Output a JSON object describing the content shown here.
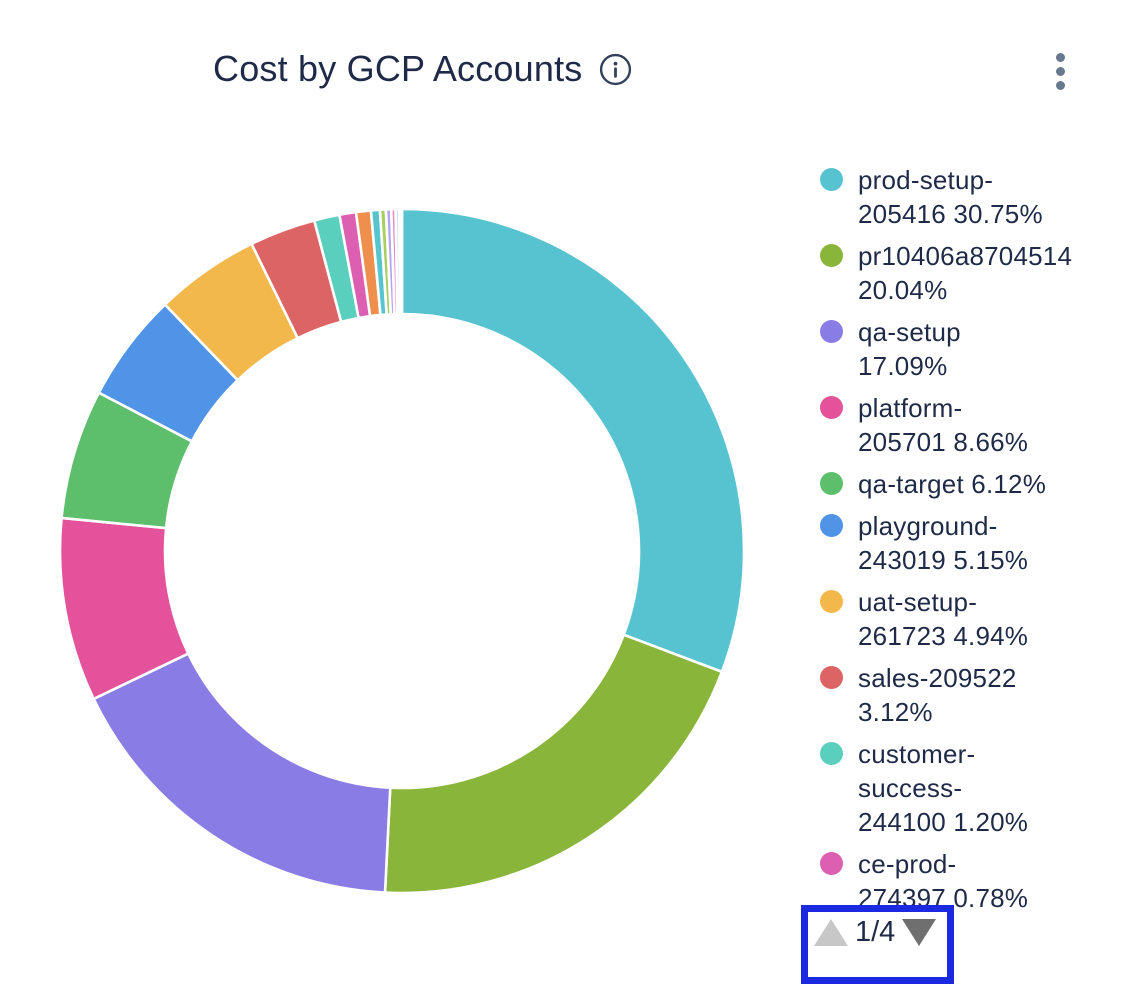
{
  "header": {
    "title": "Cost by GCP Accounts"
  },
  "colors": {
    "text": "#1e2a47",
    "kebab_dots": "#68788f",
    "pagination_border": "#1b2ae0",
    "pager_up_arrow_disabled": "#c7c7c7",
    "pager_down_arrow": "#6f6f6f"
  },
  "chart_data": {
    "type": "pie",
    "subtype": "donut",
    "title": "Cost by GCP Accounts",
    "legend_position": "right",
    "start_angle_deg": 0,
    "direction": "clockwise",
    "outer_radius": 342,
    "inner_radius": 237,
    "series": [
      {
        "name": "prod-setup-205416",
        "percent": 30.75,
        "color": "#58c3d0",
        "legend_lines": [
          "prod-setup-",
          "205416 30.75%"
        ]
      },
      {
        "name": "pr10406a8704514",
        "percent": 20.04,
        "color": "#8ab53b",
        "legend_lines": [
          "pr10406a8704514",
          "20.04%"
        ]
      },
      {
        "name": "qa-setup",
        "percent": 17.09,
        "color": "#8a7ce5",
        "legend_lines": [
          "qa-setup",
          "17.09%"
        ]
      },
      {
        "name": "platform-205701",
        "percent": 8.66,
        "color": "#e5529c",
        "legend_lines": [
          "platform-",
          "205701 8.66%"
        ]
      },
      {
        "name": "qa-target",
        "percent": 6.12,
        "color": "#5dbe6c",
        "legend_lines": [
          "qa-target 6.12%"
        ]
      },
      {
        "name": "playground-243019",
        "percent": 5.15,
        "color": "#5094e8",
        "legend_lines": [
          "playground-",
          "243019 5.15%"
        ]
      },
      {
        "name": "uat-setup-261723",
        "percent": 4.94,
        "color": "#f2b84b",
        "legend_lines": [
          "uat-setup-",
          "261723 4.94%"
        ]
      },
      {
        "name": "sales-209522",
        "percent": 3.12,
        "color": "#dd6464",
        "legend_lines": [
          "sales-209522",
          "3.12%"
        ]
      },
      {
        "name": "customer-success-244100",
        "percent": 1.2,
        "color": "#5bcfbd",
        "legend_lines": [
          "customer-",
          "success-",
          "244100 1.20%"
        ]
      },
      {
        "name": "ce-prod-274397",
        "percent": 0.78,
        "color": "#dc5fb1",
        "legend_lines": [
          "ce-prod-",
          "274397 0.78%"
        ]
      }
    ],
    "unlabeled_segments": [
      {
        "percent": 0.7,
        "color": "#ee8f4d"
      },
      {
        "percent": 0.42,
        "color": "#56c5d0"
      },
      {
        "percent": 0.28,
        "color": "#a9cf63"
      },
      {
        "percent": 0.25,
        "color": "#b4a7f0"
      },
      {
        "percent": 0.2,
        "color": "#e88bc4"
      },
      {
        "percent": 0.17,
        "color": "#c9e3f2"
      },
      {
        "percent": 0.13,
        "color": "#e6e0fb"
      }
    ]
  },
  "legend": {
    "pagination": {
      "label": "1/4"
    }
  }
}
